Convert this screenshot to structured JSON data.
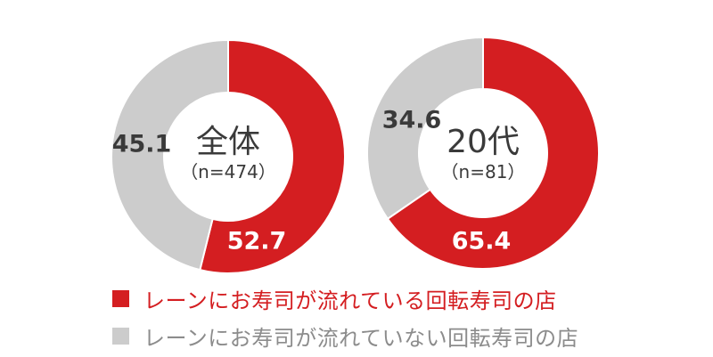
{
  "colors": {
    "red": "#d41e21",
    "gray": "#cccccc",
    "gray_text": "#8c8c8c",
    "dark_text": "#3a3a3a",
    "white": "#ffffff"
  },
  "legend": [
    {
      "label": "レーンにお寿司が流れている回転寿司の店",
      "color": "#d41e21",
      "text_color": "#d41e21"
    },
    {
      "label": "レーンにお寿司が流れていない回転寿司の店",
      "color": "#cccccc",
      "text_color": "#8c8c8c"
    }
  ],
  "chart_data": [
    {
      "type": "pie",
      "variant": "donut",
      "center_title": "全体",
      "center_subtitle": "（n=474）",
      "series": [
        {
          "name": "レーンにお寿司が流れている回転寿司の店",
          "value": 52.7,
          "label": "52.7"
        },
        {
          "name": "レーンにお寿司が流れていない回転寿司の店",
          "value": 45.1,
          "label": "45.1"
        }
      ]
    },
    {
      "type": "pie",
      "variant": "donut",
      "center_title": "20代",
      "center_subtitle": "（n=81）",
      "series": [
        {
          "name": "レーンにお寿司が流れている回転寿司の店",
          "value": 65.4,
          "label": "65.4"
        },
        {
          "name": "レーンにお寿司が流れていない回転寿司の店",
          "value": 34.6,
          "label": "34.6"
        }
      ]
    }
  ]
}
